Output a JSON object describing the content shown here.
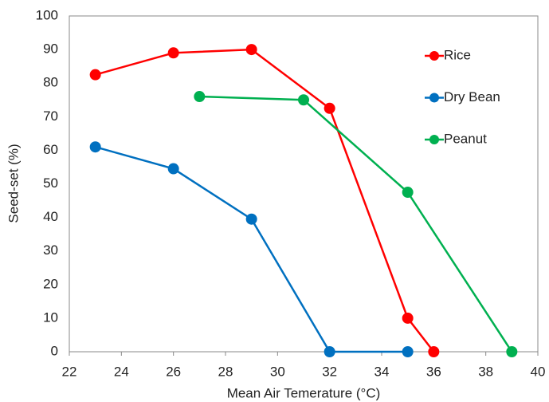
{
  "chart_data": {
    "type": "line",
    "xlabel": "Mean Air Temerature (°C)",
    "ylabel": "Seed-set (%)",
    "xlim": [
      22,
      40
    ],
    "xticks": [
      22,
      24,
      26,
      28,
      30,
      32,
      34,
      36,
      38,
      40
    ],
    "ylim": [
      0,
      100
    ],
    "yticks": [
      0,
      10,
      20,
      30,
      40,
      50,
      60,
      70,
      80,
      90,
      100
    ],
    "grid": false,
    "legend": "right",
    "series": [
      {
        "name": "Rice",
        "color": "#ff0000",
        "x": [
          23,
          26,
          29,
          32,
          35,
          36
        ],
        "values": [
          82.5,
          89,
          90,
          72.5,
          10,
          0
        ]
      },
      {
        "name": "Dry Bean",
        "color": "#0070c0",
        "x": [
          23,
          26,
          29,
          32,
          35
        ],
        "values": [
          61,
          54.5,
          39.5,
          0,
          0
        ]
      },
      {
        "name": "Peanut",
        "color": "#00b050",
        "x": [
          27,
          31,
          35,
          39
        ],
        "values": [
          76,
          75,
          47.5,
          0
        ]
      }
    ]
  }
}
